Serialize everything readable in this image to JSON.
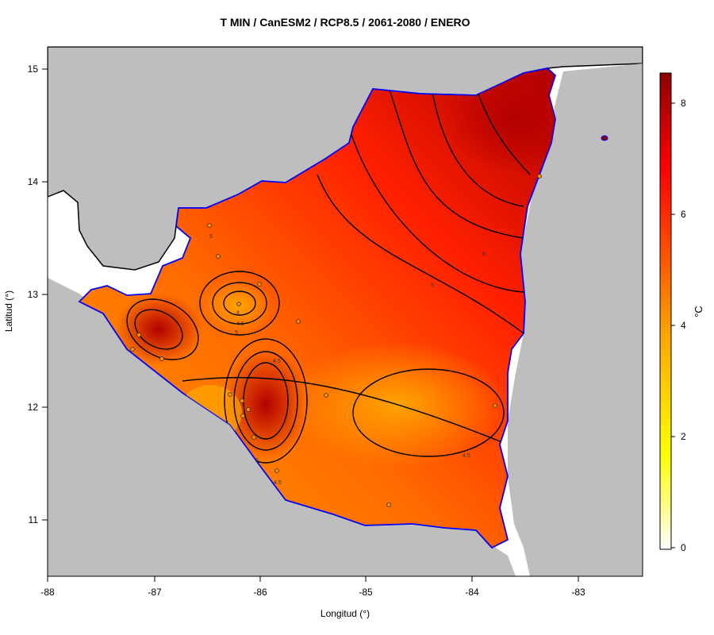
{
  "title": "T MIN / CanESM2 / RCP8.5 / 2061-2080 / ENERO",
  "xlabel": "Longitud (°)",
  "ylabel": "Latitud (°)",
  "x_ticks": [
    "-88",
    "-87",
    "-86",
    "-85",
    "-84",
    "-83"
  ],
  "y_ticks": [
    "11",
    "12",
    "13",
    "14",
    "15"
  ],
  "legend": {
    "unit": "°C",
    "ticks": [
      "0",
      "2",
      "4",
      "6",
      "8"
    ],
    "colors": [
      "#ffffff",
      "#ffff00",
      "#ffa500",
      "#ff4000",
      "#ff0000",
      "#8b0000"
    ]
  },
  "contour_labels": [
    "4.5",
    "4.5",
    "4.5",
    "4.5",
    "5",
    "5",
    "5",
    "6",
    "4",
    "5"
  ],
  "colors": {
    "land": "#bebebe",
    "coast": "#0000ff",
    "border": "#000000"
  }
}
